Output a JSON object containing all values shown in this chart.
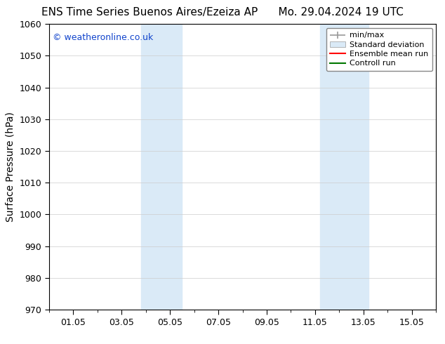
{
  "title_left": "ENS Time Series Buenos Aires/Ezeiza AP",
  "title_right": "Mo. 29.04.2024 19 UTC",
  "ylabel": "Surface Pressure (hPa)",
  "ylim": [
    970,
    1060
  ],
  "yticks": [
    970,
    980,
    990,
    1000,
    1010,
    1020,
    1030,
    1040,
    1050,
    1060
  ],
  "xlim": [
    0.0,
    16.0
  ],
  "xtick_positions": [
    1.0,
    3.0,
    5.0,
    7.0,
    9.0,
    11.0,
    13.0,
    15.0
  ],
  "xtick_labels": [
    "01.05",
    "03.05",
    "05.05",
    "07.05",
    "09.05",
    "11.05",
    "13.05",
    "15.05"
  ],
  "shaded_regions": [
    {
      "xmin": 3.8,
      "xmax": 5.5
    },
    {
      "xmin": 11.2,
      "xmax": 13.2
    }
  ],
  "shade_color": "#daeaf7",
  "watermark": "© weatheronline.co.uk",
  "watermark_color": "#1144cc",
  "watermark_fontsize": 9,
  "legend_labels": [
    "min/max",
    "Standard deviation",
    "Ensemble mean run",
    "Controll run"
  ],
  "legend_colors_line": [
    "#999999",
    "#cccccc",
    "#ff0000",
    "#007700"
  ],
  "bg_color": "#ffffff",
  "grid_color": "#cccccc",
  "title_fontsize": 11,
  "axis_label_fontsize": 10,
  "tick_fontsize": 9,
  "legend_fontsize": 8
}
